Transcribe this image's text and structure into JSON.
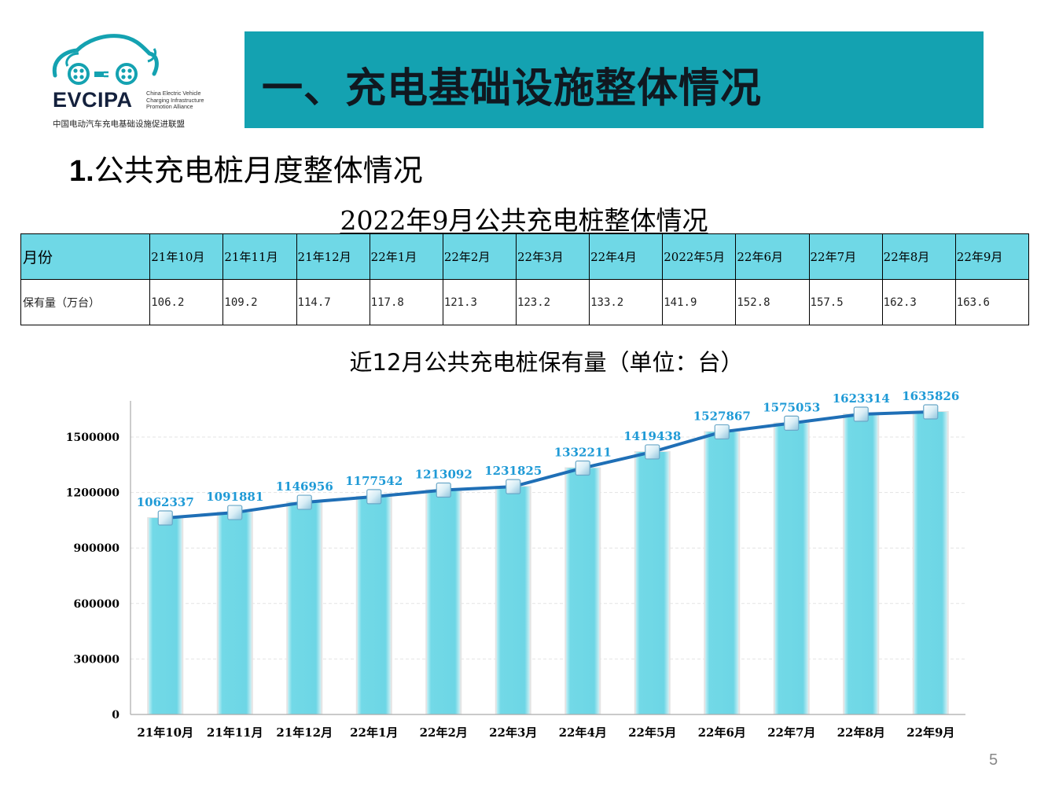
{
  "logo": {
    "name": "EVCIPA",
    "en_lines": [
      "China Electric Vehicle",
      "Charging Infrastructure",
      "Promotion Alliance"
    ],
    "cn": "中国电动汽车充电基础设施促进联盟"
  },
  "header": {
    "title": "一、充电基础设施整体情况"
  },
  "section": {
    "number": "1.",
    "title": "公共充电桩月度整体情况"
  },
  "table": {
    "title": "2022年9月公共充电桩整体情况",
    "row_headers": [
      "月份",
      "保有量（万台）"
    ],
    "months": [
      "21年10月",
      "21年11月",
      "21年12月",
      "22年1月",
      "22年2月",
      "22年3月",
      "22年4月",
      "2022年5月",
      "22年6月",
      "22年7月",
      "22年8月",
      "22年9月"
    ],
    "values": [
      "106.2",
      "109.2",
      "114.7",
      "117.8",
      "121.3",
      "123.2",
      "133.2",
      "141.9",
      "152.8",
      "157.5",
      "162.3",
      "163.6"
    ]
  },
  "chart_data": {
    "type": "bar",
    "title": "近12月公共充电桩保有量（单位：台）",
    "xlabel": "",
    "ylabel": "",
    "categories": [
      "21年10月",
      "21年11月",
      "21年12月",
      "22年1月",
      "22年2月",
      "22年3月",
      "22年4月",
      "22年5月",
      "22年6月",
      "22年7月",
      "22年8月",
      "22年9月"
    ],
    "series": [
      {
        "values": [
          1062337,
          1091881,
          1146956,
          1177542,
          1213092,
          1231825,
          1332211,
          1419438,
          1527867,
          1575053,
          1623314,
          1635826
        ]
      }
    ],
    "overlay_line": true,
    "ylim": [
      0,
      1500000
    ],
    "yticks": [
      0,
      300000,
      600000,
      900000,
      1200000,
      1500000
    ],
    "grid": true,
    "legend": "none",
    "colors": {
      "bar": "#6fd8e6",
      "line": "#1f6fb6",
      "data_label": "#1f9ad6"
    }
  },
  "page_number": "5"
}
